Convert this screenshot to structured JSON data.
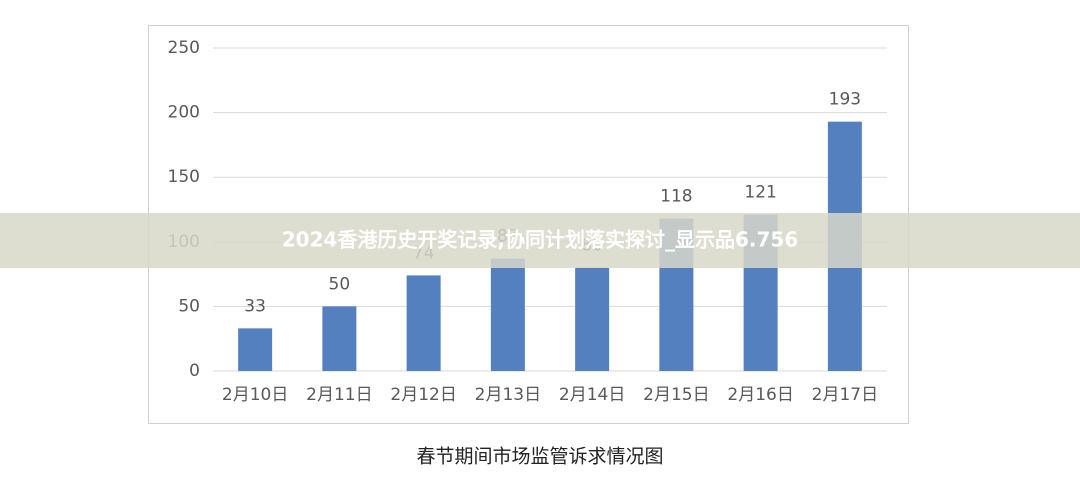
{
  "chart_data": {
    "type": "bar",
    "title": "春节期间市场监管诉求情况图",
    "categories": [
      "2月10日",
      "2月11日",
      "2月12日",
      "2月13日",
      "2月14日",
      "2月15日",
      "2月16日",
      "2月17日"
    ],
    "values": [
      33,
      50,
      74,
      87,
      80,
      118,
      121,
      193
    ],
    "color": "#5580c0",
    "ylim": [
      0,
      250
    ],
    "yticks": [
      0,
      50,
      100,
      150,
      200,
      250
    ],
    "grid": true
  },
  "banner": {
    "text": "2024香港历史开奖记录,协同计划落实探讨_显示品6.756"
  }
}
